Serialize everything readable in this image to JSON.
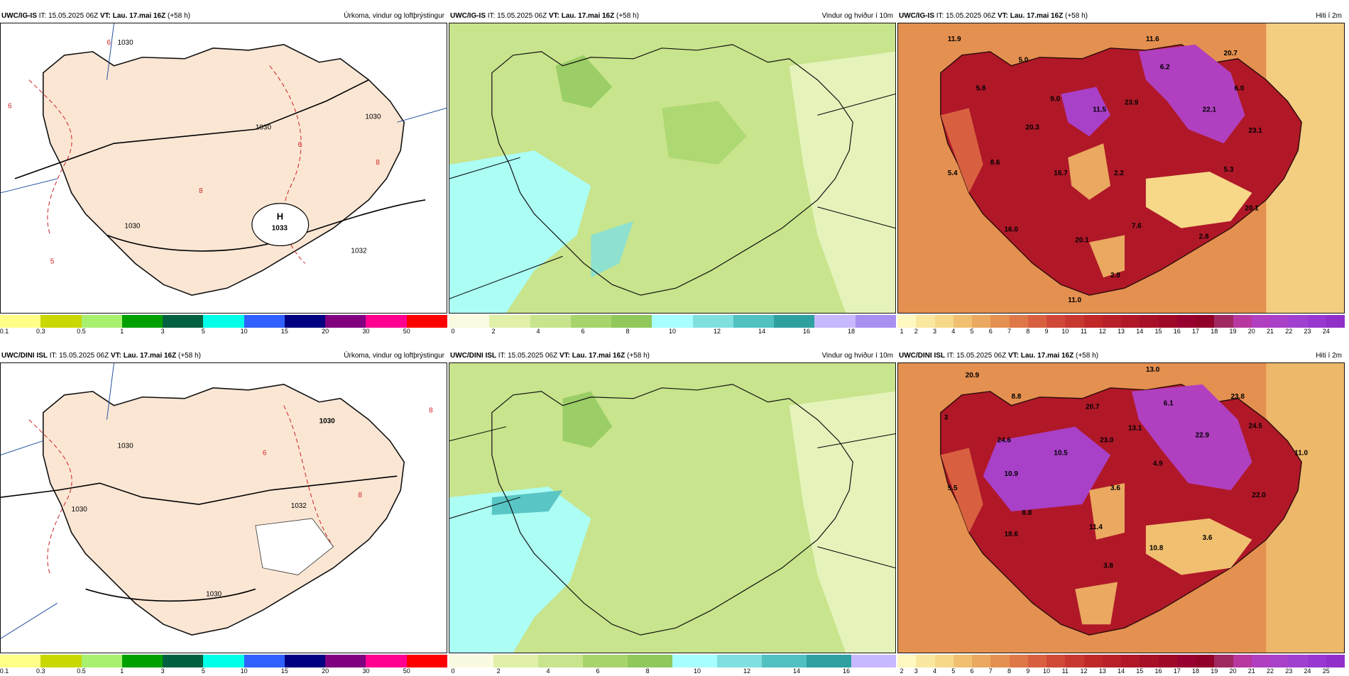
{
  "rows": [
    {
      "model": "UWC/IG-IS",
      "it_label": "IT:",
      "it_value": "15.05.2025 06Z",
      "vt_label": "VT:",
      "vt_value": "Lau. 17.mai 16Z",
      "lead": "(+58 h)",
      "panels": [
        {
          "title": "Úrkoma, vindur og loftþrýstingur",
          "ticks": [
            "0.1",
            "0.3",
            "0.5",
            "1",
            "3",
            "5",
            "10",
            "15",
            "20",
            "30",
            "50"
          ],
          "labels": [
            "H",
            "1033",
            "1030",
            "1030",
            "1030",
            "1032",
            "1030",
            "6",
            "8",
            "8",
            "6",
            "6",
            "5"
          ]
        },
        {
          "title": "Vindur og hviður í 10m",
          "ticks": [
            "0",
            "2",
            "4",
            "6",
            "8",
            "10",
            "12",
            "14",
            "16",
            "18"
          ],
          "labels": []
        },
        {
          "title": "Hiti í 2m",
          "ticks": [
            "1",
            "2",
            "3",
            "4",
            "5",
            "6",
            "7",
            "8",
            "9",
            "10",
            "11",
            "12",
            "13",
            "14",
            "15",
            "16",
            "17",
            "18",
            "19",
            "20",
            "21",
            "22",
            "23",
            "24"
          ],
          "labels": [
            "11.9",
            "11.6",
            "5.0",
            "6.2",
            "20.7",
            "5.8",
            "9.0",
            "11.5",
            "23.9",
            "22.1",
            "6.0",
            "20.3",
            "23.1",
            "8.6",
            "5.4",
            "16.7",
            "2.2",
            "5.3",
            "20.1",
            "7.6",
            "16.0",
            "20.1",
            "2.8",
            "2.8",
            "11.0"
          ]
        }
      ]
    },
    {
      "model": "UWC/DINI ISL",
      "it_label": "IT:",
      "it_value": "15.05.2025 06Z",
      "vt_label": "VT:",
      "vt_value": "Lau. 17.mai 16Z",
      "lead": "(+58 h)",
      "panels": [
        {
          "title": "Úrkoma, vindur og loftþrýstingur",
          "ticks": [
            "0.1",
            "0.3",
            "0.5",
            "1",
            "3",
            "5",
            "10",
            "15",
            "20",
            "30",
            "50"
          ],
          "labels": [
            "1030",
            "1030",
            "1030",
            "1032",
            "1030",
            "8",
            "6",
            "8"
          ]
        },
        {
          "title": "Vindur og hviður í 10m",
          "ticks": [
            "0",
            "2",
            "4",
            "6",
            "8",
            "10",
            "12",
            "14",
            "16"
          ],
          "labels": []
        },
        {
          "title": "Hiti í 2m",
          "ticks": [
            "2",
            "3",
            "4",
            "5",
            "6",
            "7",
            "8",
            "9",
            "10",
            "11",
            "12",
            "13",
            "14",
            "15",
            "16",
            "17",
            "18",
            "19",
            "20",
            "21",
            "22",
            "23",
            "24",
            "25"
          ],
          "labels": [
            "20.9",
            "13.0",
            "8.8",
            "20.7",
            "6.1",
            "23.8",
            "3",
            "24.6",
            "23.0",
            "13.1",
            "22.9",
            "24.5",
            "11.0",
            "10.5",
            "4.9",
            "10.9",
            "3.6",
            "5.5",
            "22.0",
            "8.8",
            "11.4",
            "10.8",
            "3.6",
            "3.8",
            "18.6"
          ]
        }
      ]
    }
  ],
  "colorbars": {
    "precip": [
      "#ffff88",
      "#c8d800",
      "#a8f070",
      "#00a000",
      "#006040",
      "#00ffe8",
      "#3060ff",
      "#000080",
      "#800080",
      "#ff0090",
      "#ff0000"
    ],
    "wind_top": [
      "#fafae0",
      "#e0f0a8",
      "#c8e48c",
      "#a8d46c",
      "#90c85c",
      "#a8ffff",
      "#80e0e0",
      "#50c0c0",
      "#2ea0a0",
      "#c8b8ff",
      "#a890f0"
    ],
    "wind_bottom": [
      "#fafae0",
      "#e0f0a8",
      "#c8e48c",
      "#a8d46c",
      "#90c85c",
      "#a8ffff",
      "#80e0e0",
      "#50c0c0",
      "#2ea0a0",
      "#c8b8ff"
    ],
    "temp": [
      "#fff8c0",
      "#fbe8a0",
      "#f6d888",
      "#f0c070",
      "#eaa860",
      "#e49050",
      "#df7848",
      "#d86040",
      "#d04838",
      "#c83830",
      "#c02828",
      "#b82028",
      "#b01828",
      "#a81028",
      "#a00828",
      "#980030",
      "#900028",
      "#a02860",
      "#b838a0",
      "#b040c0",
      "#a840c8",
      "#a040d0",
      "#9838d0",
      "#9030c8"
    ]
  }
}
